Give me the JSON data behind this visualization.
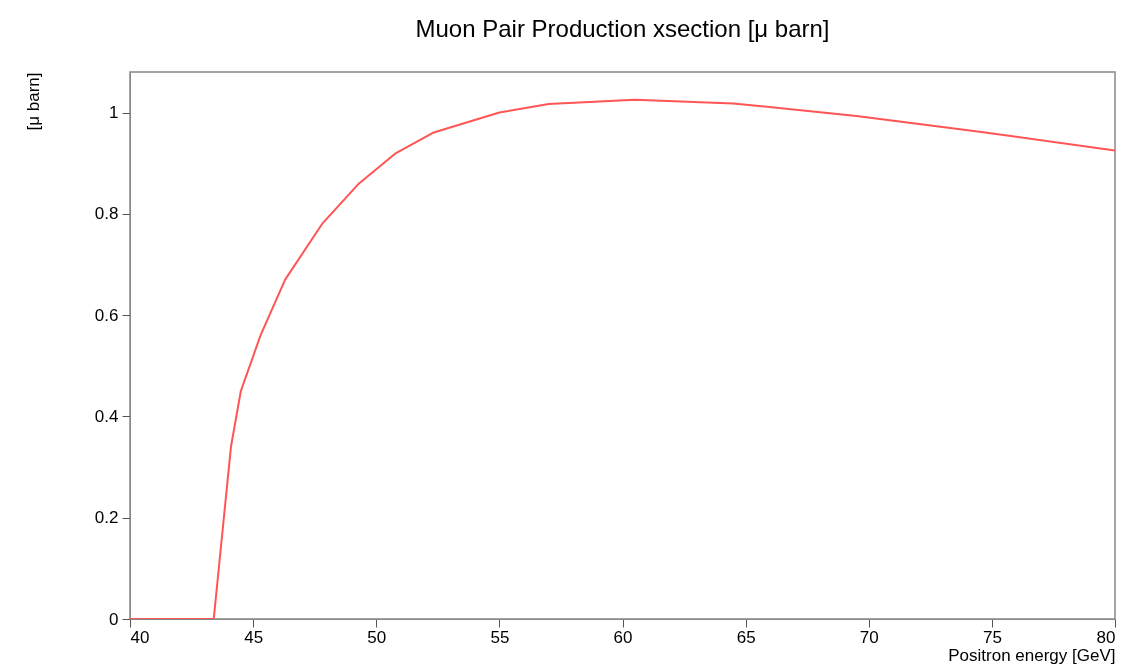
{
  "chart_data": {
    "type": "line",
    "title": "Muon Pair Production xsection [μ barn]",
    "xlabel": "Positron energy [GeV]",
    "ylabel": "[μ barn]",
    "x": [
      40,
      43.4,
      44.1,
      44.5,
      45.3,
      46.3,
      47.8,
      49.3,
      50.8,
      52.3,
      55,
      57,
      60.5,
      64.5,
      69.5,
      74.5,
      80
    ],
    "series": [
      {
        "color": "#ff5555",
        "values": [
          0,
          0,
          0.34,
          0.45,
          0.56,
          0.67,
          0.78,
          0.86,
          0.92,
          0.96,
          1.0,
          1.017,
          1.025,
          1.018,
          0.993,
          0.962,
          0.925
        ]
      }
    ],
    "xlim": [
      40,
      80
    ],
    "xticks": [
      40,
      45,
      50,
      55,
      60,
      65,
      70,
      75,
      80
    ],
    "ylim": [
      0,
      1.08
    ],
    "yticks": [
      0,
      0.2,
      0.4,
      0.6,
      0.8,
      1
    ],
    "grid": false,
    "marker": "none",
    "line_style": "solid"
  }
}
